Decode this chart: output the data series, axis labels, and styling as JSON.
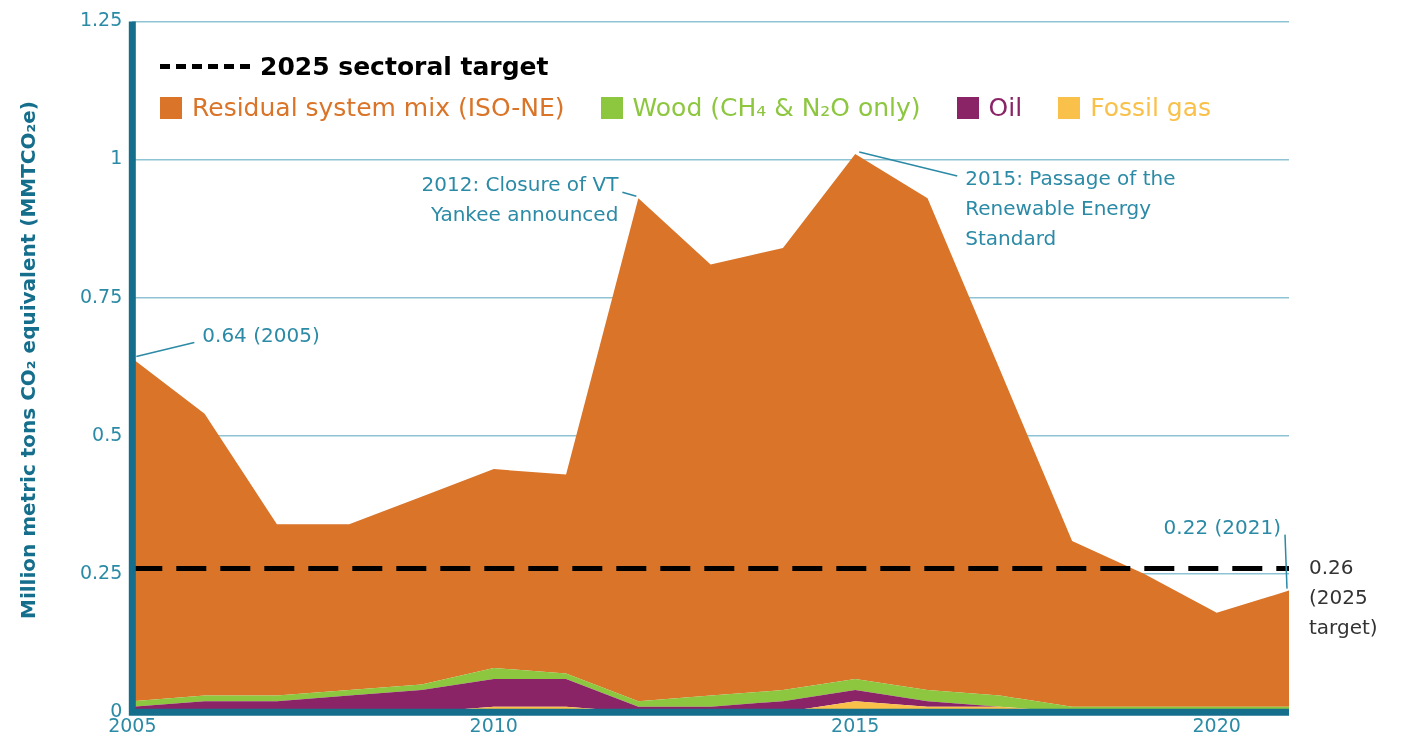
{
  "chart_data": {
    "type": "area",
    "stacked": true,
    "ylabel": "Million metric tons CO₂ equivalent (MMTCO₂e)",
    "x": [
      2005,
      2006,
      2007,
      2008,
      2009,
      2010,
      2011,
      2012,
      2013,
      2014,
      2015,
      2016,
      2017,
      2018,
      2019,
      2020,
      2021
    ],
    "series": [
      {
        "name": "Fossil gas",
        "color": "#f9c04a",
        "values": [
          0,
          0,
          0,
          0,
          0,
          0.01,
          0.01,
          0,
          0,
          0,
          0.02,
          0.01,
          0.01,
          0,
          0,
          0,
          0
        ]
      },
      {
        "name": "Oil",
        "color": "#8a2466",
        "values": [
          0.01,
          0.02,
          0.02,
          0.03,
          0.04,
          0.05,
          0.05,
          0.01,
          0.01,
          0.02,
          0.02,
          0.01,
          0,
          0,
          0,
          0,
          0
        ]
      },
      {
        "name": "Wood (CH₄ & N₂O only)",
        "color": "#8dc63f",
        "values": [
          0.01,
          0.01,
          0.01,
          0.01,
          0.01,
          0.02,
          0.01,
          0.01,
          0.02,
          0.02,
          0.02,
          0.02,
          0.02,
          0.01,
          0.01,
          0.01,
          0.01
        ]
      },
      {
        "name": "Residual system mix (ISO-NE)",
        "color": "#d97428",
        "values": [
          0.62,
          0.51,
          0.31,
          0.3,
          0.34,
          0.36,
          0.36,
          0.91,
          0.78,
          0.8,
          0.95,
          0.89,
          0.59,
          0.3,
          0.24,
          0.17,
          0.21
        ]
      }
    ],
    "xlim": [
      2005,
      2021
    ],
    "xticks": [
      2005,
      2010,
      2015,
      2020
    ],
    "ylim": [
      0,
      1.25
    ],
    "yticks": [
      0,
      0.25,
      0.5,
      0.75,
      1,
      1.25
    ],
    "grid": "y",
    "legend": "top",
    "ref_lines": [
      {
        "axis": "y",
        "value": 0.26,
        "label": "2025 sectoral target",
        "color": "#000000",
        "line_style": "dashed"
      }
    ],
    "annotations": [
      {
        "text": "0.64 (2005)",
        "x": 2005,
        "y": 0.64
      },
      {
        "text": "2012: Closure of VT Yankee announced",
        "x": 2012,
        "y": 0.93
      },
      {
        "text": "2015: Passage of the Renewable Energy Standard",
        "x": 2015,
        "y": 1.01
      },
      {
        "text": "0.22 (2021)",
        "x": 2021,
        "y": 0.22
      },
      {
        "text": "0.26 (2025 target)",
        "x": 2021,
        "y": 0.26
      }
    ]
  }
}
